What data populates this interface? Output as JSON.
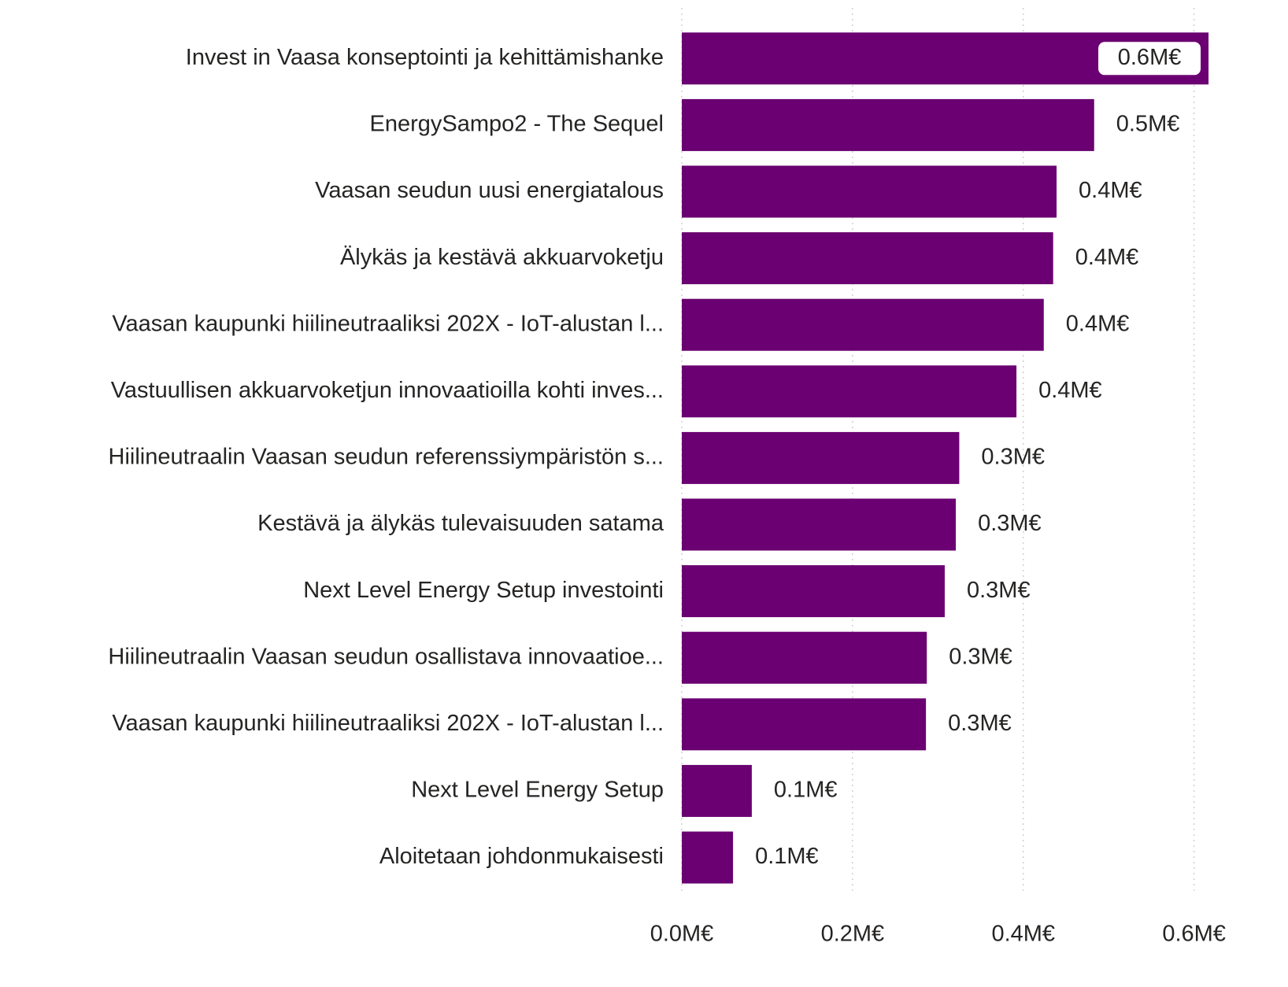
{
  "chart_data": {
    "type": "bar",
    "categories": [
      "Invest in Vaasa konseptointi ja kehittämishanke",
      "EnergySampo2 - The Sequel",
      "Vaasan seudun uusi energiatalous",
      "Älykäs ja kestävä akkuarvoketju",
      "Vaasan kaupunki hiilineutraaliksi 202X - IoT-alustan l...",
      "Vastuullisen akkuarvoketjun innovaatioilla kohti inves...",
      "Hiilineutraalin Vaasan seudun referenssiympäristön s...",
      "Kestävä ja älykäs tulevaisuuden satama",
      "Next Level Energy Setup investointi",
      "Hiilineutraalin Vaasan seudun osallistava innovaatioe...",
      "Vaasan kaupunki hiilineutraaliksi 202X - IoT-alustan l...",
      "Next Level Energy Setup",
      "Aloitetaan johdonmukaisesti"
    ],
    "values": [
      0.617,
      0.483,
      0.439,
      0.435,
      0.424,
      0.392,
      0.325,
      0.321,
      0.308,
      0.287,
      0.286,
      0.082,
      0.06
    ],
    "value_labels": [
      "0.6M€",
      "0.5M€",
      "0.4M€",
      "0.4M€",
      "0.4M€",
      "0.4M€",
      "0.3M€",
      "0.3M€",
      "0.3M€",
      "0.3M€",
      "0.3M€",
      "0.1M€",
      "0.1M€"
    ],
    "color": "#6a0071",
    "xlim": [
      0,
      0.64
    ],
    "xticks": [
      {
        "value": 0,
        "label": "0.0M€"
      },
      {
        "value": 0.2,
        "label": "0.2M€"
      },
      {
        "value": 0.4,
        "label": "0.4M€"
      },
      {
        "value": 0.6,
        "label": "0.6M€"
      }
    ],
    "grid": true
  }
}
